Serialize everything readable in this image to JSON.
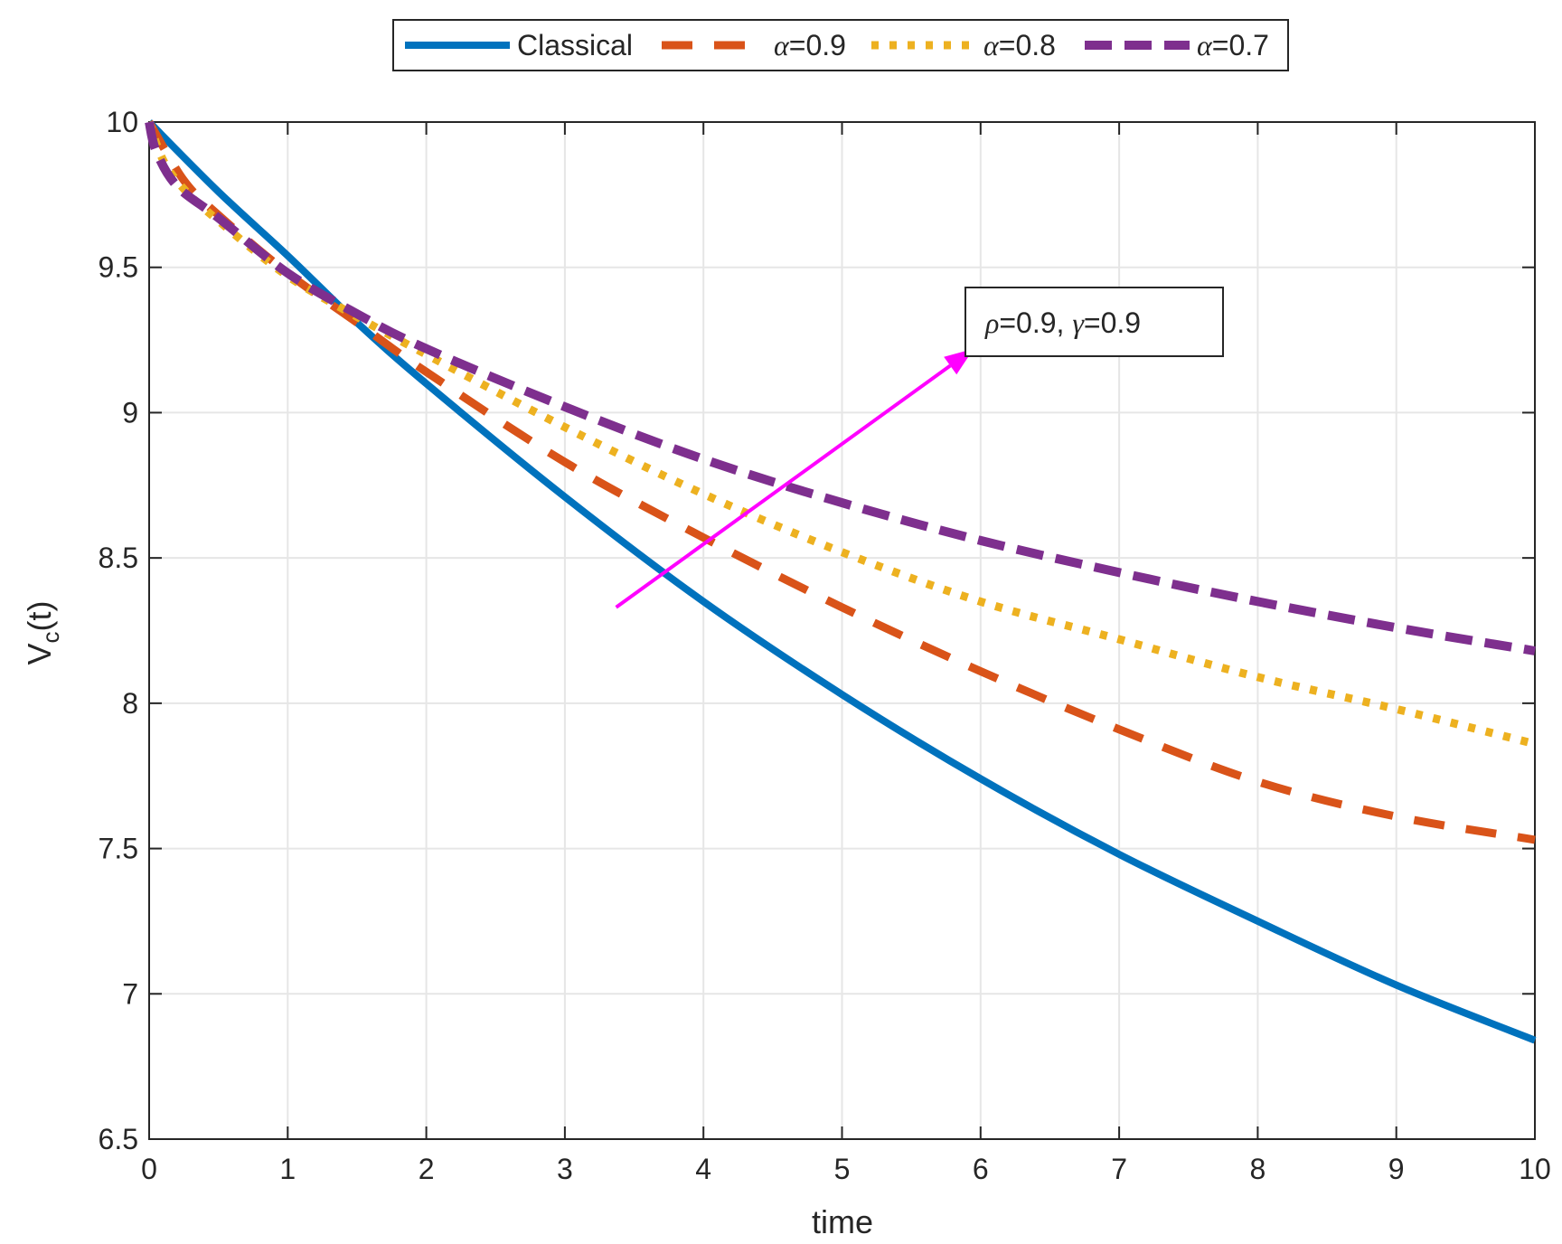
{
  "chart_data": {
    "type": "line",
    "title": "",
    "xlabel": "time",
    "ylabel": {
      "main": "V",
      "sub": "c",
      "suffix": "(t)"
    },
    "xlim": [
      0,
      10
    ],
    "ylim": [
      6.5,
      10
    ],
    "xticks": [
      0,
      1,
      2,
      3,
      4,
      5,
      6,
      7,
      8,
      9,
      10
    ],
    "yticks": [
      6.5,
      7,
      7.5,
      8,
      8.5,
      9,
      9.5,
      10
    ],
    "grid": true,
    "legend_position": "top-outside",
    "series": [
      {
        "name": "Classical",
        "legend_prefix": "",
        "legend_value": "Classical",
        "color": "#0072BD",
        "style": "solid",
        "x": [
          0,
          0.5,
          1,
          1.5,
          2,
          3,
          4,
          5,
          6,
          7,
          8,
          9,
          10
        ],
        "y": [
          10,
          9.76,
          9.54,
          9.31,
          9.1,
          8.71,
          8.35,
          8.03,
          7.74,
          7.48,
          7.25,
          7.03,
          6.84
        ]
      },
      {
        "name": "alpha=0.9",
        "legend_prefix": "α",
        "legend_value": "=0.9",
        "color": "#D95319",
        "style": "dashed",
        "x": [
          0,
          0.25,
          0.5,
          1,
          1.5,
          2,
          3,
          4,
          5,
          6,
          7,
          8,
          9,
          10
        ],
        "y": [
          10,
          9.8,
          9.68,
          9.48,
          9.31,
          9.14,
          8.83,
          8.57,
          8.33,
          8.11,
          7.91,
          7.73,
          7.61,
          7.53
        ]
      },
      {
        "name": "alpha=0.8",
        "legend_prefix": "α",
        "legend_value": "=0.8",
        "color": "#EDB120",
        "style": "dotted",
        "x": [
          0,
          0.1,
          0.25,
          0.5,
          1,
          1.5,
          2,
          3,
          4,
          5,
          6,
          7,
          8,
          9,
          10
        ],
        "y": [
          10,
          9.87,
          9.77,
          9.66,
          9.47,
          9.33,
          9.2,
          8.95,
          8.72,
          8.52,
          8.35,
          8.22,
          8.09,
          7.98,
          7.86
        ]
      },
      {
        "name": "alpha=0.7",
        "legend_prefix": "α",
        "legend_value": "=0.7",
        "color": "#7E2F8E",
        "style": "dash-dot",
        "x": [
          0,
          0.05,
          0.2,
          0.5,
          1,
          1.5,
          2,
          3,
          4,
          5,
          6,
          7,
          8,
          9,
          10
        ],
        "y": [
          10,
          9.9,
          9.78,
          9.67,
          9.48,
          9.34,
          9.22,
          9.02,
          8.84,
          8.69,
          8.56,
          8.45,
          8.35,
          8.26,
          8.18
        ]
      }
    ],
    "annotation": {
      "arrow": {
        "from": [
          3.37,
          8.33
        ],
        "to": [
          5.95,
          9.22
        ],
        "color": "#FF00FF"
      },
      "rho_symbol": "ρ",
      "rho_value": "=0.9, ",
      "gamma_symbol": "γ",
      "gamma_value": "=0.9"
    }
  }
}
